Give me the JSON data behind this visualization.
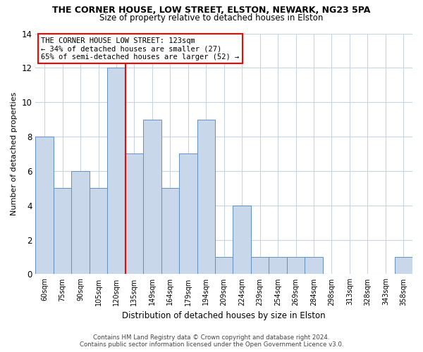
{
  "title1": "THE CORNER HOUSE, LOW STREET, ELSTON, NEWARK, NG23 5PA",
  "title2": "Size of property relative to detached houses in Elston",
  "xlabel": "Distribution of detached houses by size in Elston",
  "ylabel": "Number of detached properties",
  "footnote1": "Contains HM Land Registry data © Crown copyright and database right 2024.",
  "footnote2": "Contains public sector information licensed under the Open Government Licence v3.0.",
  "categories": [
    "60sqm",
    "75sqm",
    "90sqm",
    "105sqm",
    "120sqm",
    "135sqm",
    "149sqm",
    "164sqm",
    "179sqm",
    "194sqm",
    "209sqm",
    "224sqm",
    "239sqm",
    "254sqm",
    "269sqm",
    "284sqm",
    "298sqm",
    "313sqm",
    "328sqm",
    "343sqm",
    "358sqm"
  ],
  "values": [
    8,
    5,
    6,
    5,
    12,
    7,
    9,
    5,
    7,
    9,
    1,
    4,
    1,
    1,
    1,
    1,
    0,
    0,
    0,
    0,
    1
  ],
  "bar_color": "#c8d8ea",
  "bar_edgecolor": "#6090c0",
  "red_line_x": 4.0,
  "annotation_line1": "THE CORNER HOUSE LOW STREET: 123sqm",
  "annotation_line2": "← 34% of detached houses are smaller (27)",
  "annotation_line3": "65% of semi-detached houses are larger (52) →",
  "ylim": [
    0,
    14
  ],
  "yticks": [
    0,
    2,
    4,
    6,
    8,
    10,
    12,
    14
  ],
  "background_color": "#ffffff",
  "grid_color": "#c8d4e0"
}
